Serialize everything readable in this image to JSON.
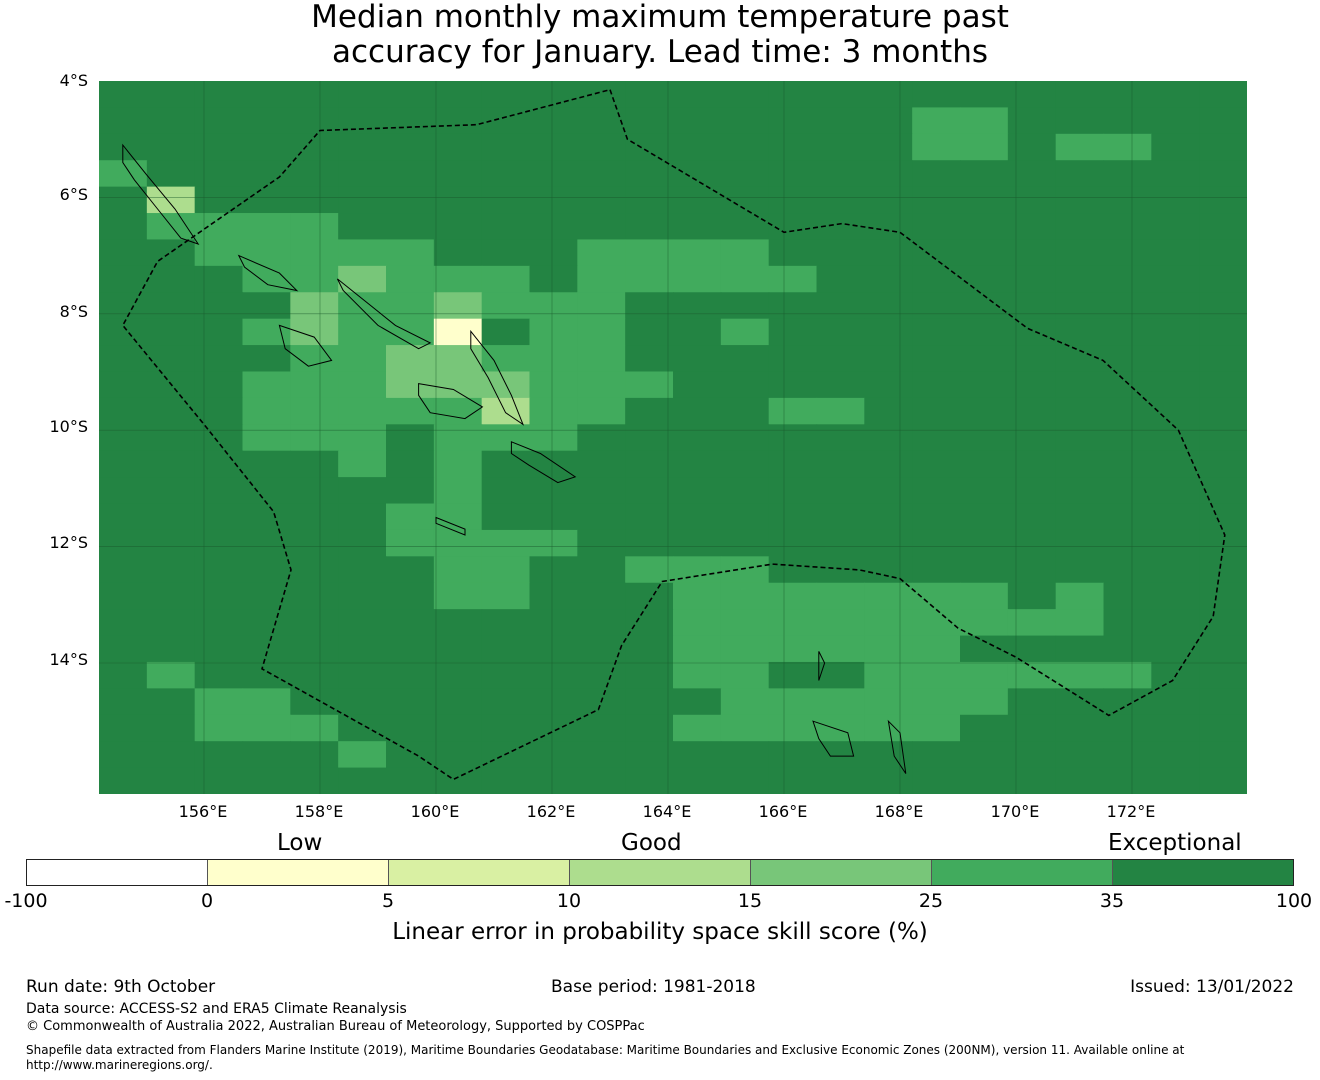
{
  "title": {
    "line1": "Median monthly maximum temperature past",
    "line2": "accuracy for January. Lead time: 3 months"
  },
  "map": {
    "lat_labels": [
      "4°S",
      "6°S",
      "8°S",
      "10°S",
      "12°S",
      "14°S"
    ],
    "lon_labels": [
      "156°E",
      "158°E",
      "160°E",
      "162°E",
      "164°E",
      "166°E",
      "168°E",
      "170°E",
      "172°E"
    ],
    "extent": {
      "lon_min": 154.2,
      "lon_max": 174.0,
      "lat_min": -16.3,
      "lat_max": -4.0
    },
    "grid_resolution_deg": 0.833,
    "colors": [
      "#ffffff",
      "#ffffcc",
      "#d9f0a3",
      "#addd8e",
      "#78c679",
      "#41ab5d",
      "#238443"
    ],
    "cells": [
      "666666666666666666666666",
      "666666666666666665566666",
      "666666666666666665565566",
      "566666666666666666666666",
      "636666666666666666666666",
      "655556666666666666666666",
      "665555566655556666666666",
      "666554555655555666666666",
      "666645545556666666666666",
      "666545516556656666666666",
      "666655445556666666666666",
      "666555444555666666666666",
      "666555553556665566666666",
      "666555655566666666666666",
      "666665656666666666666666",
      "666666656666666666666666",
      "666666556666666666666666",
      "666666555566666666666666",
      "666666655665556666666666",
      "666666655666555555565666",
      "666666666666555555555666",
      "666666666666555555666666",
      "656666666666556655555566",
      "665566666666655555566666",
      "665556666666555555666666",
      "666665666666666666666666",
      "666666666666666666666666"
    ],
    "cell_rows_note": "rows from north (4S) to south (16.3S) at ~0.46 deg, columns from 154.2E eastward at ~0.83 deg; digit = index into colors",
    "eez_boundary": [
      [
        163.0,
        -4.15
      ],
      [
        163.3,
        -5.0
      ],
      [
        166.0,
        -6.6
      ],
      [
        167.0,
        -6.45
      ],
      [
        168.0,
        -6.6
      ],
      [
        170.2,
        -8.25
      ],
      [
        171.5,
        -8.8
      ],
      [
        172.8,
        -10.0
      ],
      [
        173.6,
        -11.8
      ],
      [
        173.4,
        -13.2
      ],
      [
        172.7,
        -14.3
      ],
      [
        171.6,
        -14.9
      ],
      [
        170.0,
        -13.9
      ],
      [
        169.0,
        -13.4
      ],
      [
        168.0,
        -12.55
      ],
      [
        167.3,
        -12.4
      ],
      [
        165.8,
        -12.3
      ],
      [
        163.9,
        -12.6
      ],
      [
        163.2,
        -13.7
      ],
      [
        162.8,
        -14.8
      ],
      [
        160.3,
        -16.0
      ],
      [
        159.7,
        -15.6
      ],
      [
        157.0,
        -14.1
      ],
      [
        157.5,
        -12.4
      ],
      [
        157.2,
        -11.4
      ],
      [
        156.0,
        -9.9
      ],
      [
        154.6,
        -8.2
      ],
      [
        155.2,
        -7.1
      ],
      [
        157.3,
        -5.65
      ],
      [
        158.0,
        -4.85
      ],
      [
        160.7,
        -4.75
      ],
      [
        163.0,
        -4.15
      ]
    ],
    "islands": [
      [
        [
          154.6,
          -5.1
        ],
        [
          155.0,
          -5.6
        ],
        [
          155.5,
          -6.2
        ],
        [
          155.9,
          -6.8
        ],
        [
          155.6,
          -6.7
        ],
        [
          155.2,
          -6.2
        ],
        [
          154.8,
          -5.7
        ],
        [
          154.6,
          -5.4
        ],
        [
          154.6,
          -5.1
        ]
      ],
      [
        [
          156.6,
          -7.0
        ],
        [
          157.3,
          -7.3
        ],
        [
          157.6,
          -7.6
        ],
        [
          157.1,
          -7.5
        ],
        [
          156.7,
          -7.2
        ],
        [
          156.6,
          -7.0
        ]
      ],
      [
        [
          158.3,
          -7.4
        ],
        [
          159.3,
          -8.2
        ],
        [
          159.9,
          -8.5
        ],
        [
          159.7,
          -8.6
        ],
        [
          159.0,
          -8.2
        ],
        [
          158.4,
          -7.6
        ],
        [
          158.3,
          -7.4
        ]
      ],
      [
        [
          157.3,
          -8.2
        ],
        [
          157.9,
          -8.4
        ],
        [
          158.2,
          -8.8
        ],
        [
          157.8,
          -8.9
        ],
        [
          157.4,
          -8.6
        ],
        [
          157.3,
          -8.2
        ]
      ],
      [
        [
          159.7,
          -9.2
        ],
        [
          160.3,
          -9.3
        ],
        [
          160.8,
          -9.6
        ],
        [
          160.5,
          -9.8
        ],
        [
          159.9,
          -9.7
        ],
        [
          159.7,
          -9.4
        ],
        [
          159.7,
          -9.2
        ]
      ],
      [
        [
          160.6,
          -8.3
        ],
        [
          161.0,
          -8.8
        ],
        [
          161.3,
          -9.4
        ],
        [
          161.5,
          -9.9
        ],
        [
          161.2,
          -9.7
        ],
        [
          160.9,
          -9.1
        ],
        [
          160.6,
          -8.6
        ],
        [
          160.6,
          -8.3
        ]
      ],
      [
        [
          161.3,
          -10.2
        ],
        [
          161.8,
          -10.4
        ],
        [
          162.4,
          -10.8
        ],
        [
          162.1,
          -10.9
        ],
        [
          161.6,
          -10.6
        ],
        [
          161.3,
          -10.4
        ],
        [
          161.3,
          -10.2
        ]
      ],
      [
        [
          160.0,
          -11.5
        ],
        [
          160.5,
          -11.7
        ],
        [
          160.5,
          -11.8
        ],
        [
          160.0,
          -11.6
        ],
        [
          160.0,
          -11.5
        ]
      ],
      [
        [
          166.5,
          -15.0
        ],
        [
          167.1,
          -15.2
        ],
        [
          167.2,
          -15.6
        ],
        [
          166.8,
          -15.6
        ],
        [
          166.6,
          -15.3
        ],
        [
          166.5,
          -15.0
        ]
      ],
      [
        [
          167.8,
          -15.0
        ],
        [
          168.0,
          -15.2
        ],
        [
          168.1,
          -15.9
        ],
        [
          167.9,
          -15.6
        ],
        [
          167.8,
          -15.0
        ]
      ],
      [
        [
          166.6,
          -13.8
        ],
        [
          166.7,
          -14.0
        ],
        [
          166.6,
          -14.3
        ],
        [
          166.6,
          -13.8
        ]
      ]
    ]
  },
  "legend": {
    "categories": [
      "Low",
      "Good",
      "Exceptional"
    ],
    "ticks": [
      "-100",
      "0",
      "5",
      "10",
      "15",
      "25",
      "35",
      "100"
    ],
    "colors": [
      "#ffffff",
      "#ffffcc",
      "#d9f0a3",
      "#addd8e",
      "#78c679",
      "#41ab5d",
      "#238443"
    ],
    "title": "Linear error in probability space skill score (%)"
  },
  "footer": {
    "run_date": "Run date: 9th October",
    "base_period": "Base period: 1981-2018",
    "issued": "Issued: 13/01/2022",
    "data_source": "Data source: ACCESS-S2 and ERA5 Climate Reanalysis",
    "copyright": "© Commonwealth of Australia 2022, Australian Bureau of Meteorology, Supported by COSPPac",
    "shapefile_line1": "Shapefile data extracted from Flanders Marine Institute (2019), Maritime Boundaries Geodatabase: Maritime Boundaries and Exclusive Economic Zones (200NM), version 11. Available online at",
    "shapefile_line2": "http://www.marineregions.org/."
  }
}
